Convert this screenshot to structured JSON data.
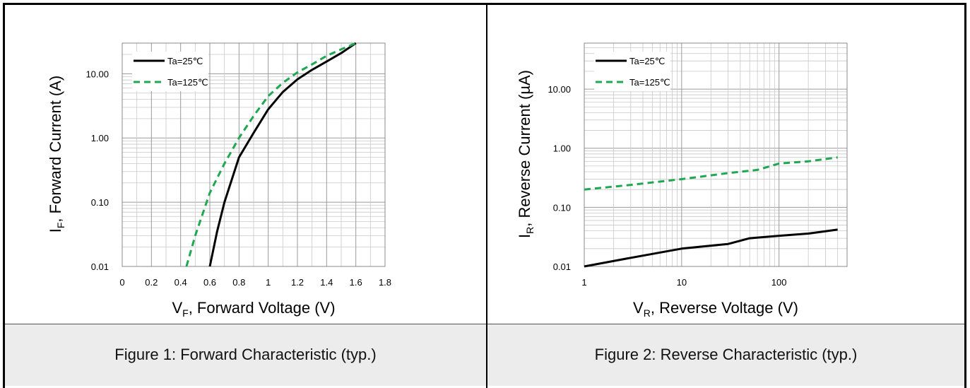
{
  "captions": {
    "fig1": "Figure 1: Forward Characteristic (typ.)",
    "fig2": "Figure 2: Reverse Characteristic (typ.)"
  },
  "colors": {
    "ta25": "#000000",
    "ta125": "#1fa84f",
    "grid_major": "#9a9a9a",
    "grid_minor": "#c8c8c8"
  },
  "chart_data": [
    {
      "type": "line",
      "xlabel_main": "V",
      "xlabel_sub": "F",
      "xlabel_rest": ", Forward Voltage (V)",
      "ylabel_main": "I",
      "ylabel_sub": "F",
      "ylabel_rest": ", Forward Current (A)",
      "xscale": "linear",
      "yscale": "log",
      "xlim": [
        0,
        1.8
      ],
      "ylim": [
        0.01,
        30
      ],
      "xticks": [
        0,
        0.2,
        0.4,
        0.6,
        0.8,
        1,
        1.2,
        1.4,
        1.6,
        1.8
      ],
      "xtick_labels": [
        "0",
        "0.2",
        "0.4",
        "0.6",
        "0.8",
        "1",
        "1.2",
        "1.4",
        "1.6",
        "1.8"
      ],
      "yticks": [
        0.01,
        0.1,
        1,
        10
      ],
      "ytick_labels": [
        "0.01",
        "0.10",
        "1.00",
        "10.00"
      ],
      "grid": true,
      "legend_position": "top-left",
      "series": [
        {
          "name": "Ta=25℃",
          "style": "solid",
          "x": [
            0.6,
            0.65,
            0.7,
            0.8,
            0.9,
            1.0,
            1.1,
            1.2,
            1.3,
            1.4,
            1.5,
            1.6
          ],
          "y": [
            0.01,
            0.035,
            0.1,
            0.5,
            1.2,
            2.8,
            5.2,
            8.2,
            11.5,
            15.5,
            21,
            30
          ]
        },
        {
          "name": "Ta=125℃",
          "style": "dashed",
          "x": [
            0.44,
            0.5,
            0.6,
            0.7,
            0.8,
            0.9,
            1.0,
            1.1,
            1.2,
            1.3,
            1.4,
            1.5,
            1.6
          ],
          "y": [
            0.01,
            0.03,
            0.14,
            0.4,
            1.0,
            2.2,
            4.5,
            7.2,
            10.5,
            14,
            19,
            24,
            30
          ]
        }
      ]
    },
    {
      "type": "line",
      "xlabel_main": "V",
      "xlabel_sub": "R",
      "xlabel_rest": ", Reverse Voltage (V)",
      "ylabel_main": "I",
      "ylabel_sub": "R",
      "ylabel_rest": ", Reverse Current (µA)",
      "xscale": "log",
      "yscale": "log",
      "xlim": [
        1,
        500
      ],
      "ylim": [
        0.01,
        60
      ],
      "xticks": [
        1,
        10,
        100
      ],
      "xtick_labels": [
        "1",
        "10",
        "100"
      ],
      "yticks": [
        0.01,
        0.1,
        1,
        10
      ],
      "ytick_labels": [
        "0.01",
        "0.10",
        "1.00",
        "10.00"
      ],
      "grid": true,
      "legend_position": "top-left",
      "series": [
        {
          "name": "Ta=25℃",
          "style": "solid",
          "x": [
            1,
            3,
            10,
            30,
            50,
            100,
            200,
            400
          ],
          "y": [
            0.01,
            0.014,
            0.02,
            0.024,
            0.03,
            0.033,
            0.036,
            0.042
          ]
        },
        {
          "name": "Ta=125℃",
          "style": "dashed",
          "x": [
            1,
            3,
            10,
            30,
            60,
            100,
            200,
            400
          ],
          "y": [
            0.2,
            0.24,
            0.3,
            0.38,
            0.43,
            0.55,
            0.6,
            0.7
          ]
        }
      ]
    }
  ]
}
